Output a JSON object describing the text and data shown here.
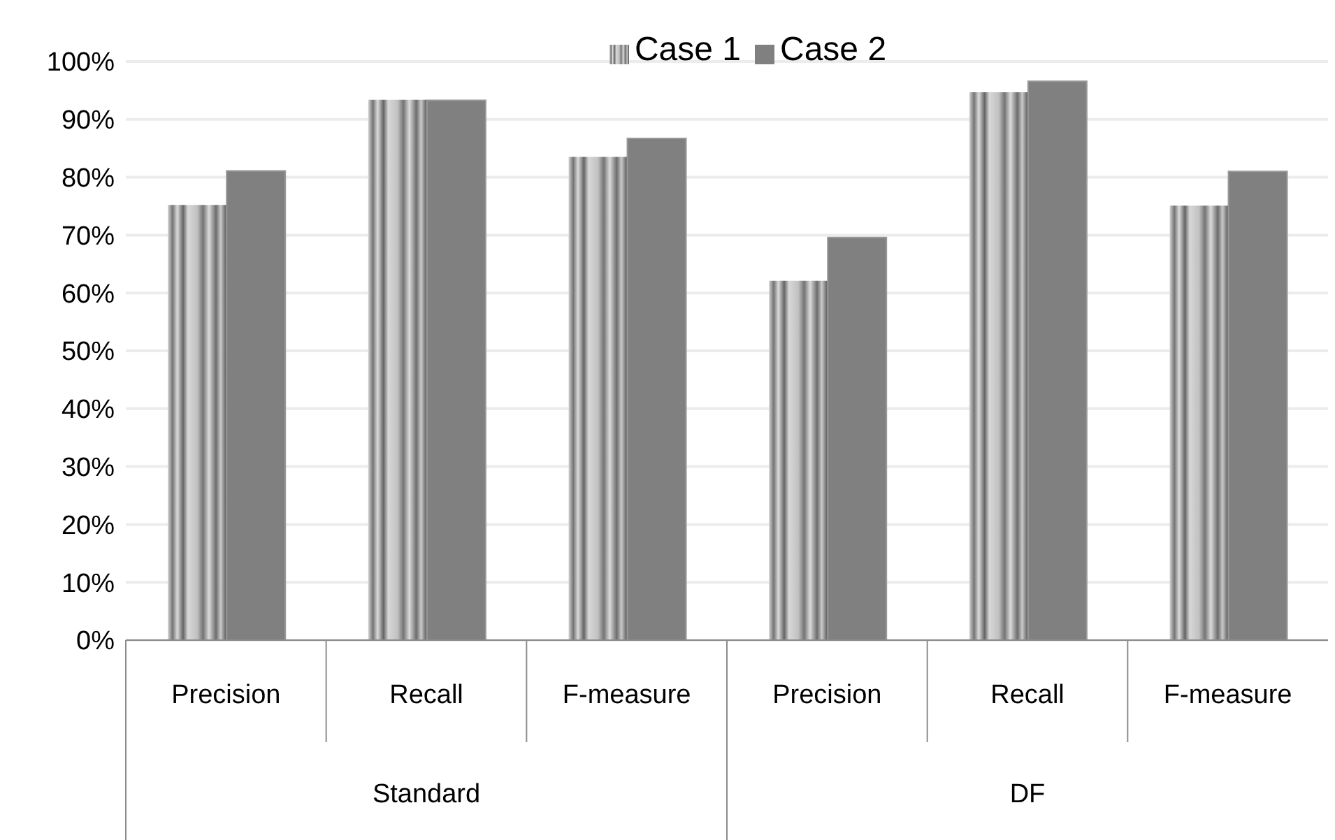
{
  "chart_data": {
    "type": "bar",
    "categories": [
      "Precision",
      "Recall",
      "F-measure",
      "Precision",
      "Recall",
      "F-measure"
    ],
    "annotations": [
      "Standard",
      "DF"
    ],
    "series": [
      {
        "name": "Case 1",
        "color": "#a6a6a6",
        "values": [
          75.2,
          93.4,
          83.5,
          62.1,
          94.7,
          75.1
        ]
      },
      {
        "name": "Case 2",
        "color": "#808080",
        "values": [
          81.1,
          93.3,
          86.7,
          69.6,
          96.6,
          81.0
        ]
      }
    ],
    "ylim": [
      0,
      100
    ],
    "yticks": [
      {
        "value": 0,
        "label": "0%"
      },
      {
        "value": 10,
        "label": "10%"
      },
      {
        "value": 20,
        "label": "20%"
      },
      {
        "value": 30,
        "label": "30%"
      },
      {
        "value": 40,
        "label": "40%"
      },
      {
        "value": 50,
        "label": "50%"
      },
      {
        "value": 60,
        "label": "60%"
      },
      {
        "value": 70,
        "label": "70%"
      },
      {
        "value": 80,
        "label": "80%"
      },
      {
        "value": 90,
        "label": "90%"
      },
      {
        "value": 100,
        "label": "100%"
      }
    ],
    "grid": "y",
    "legend": "top"
  }
}
